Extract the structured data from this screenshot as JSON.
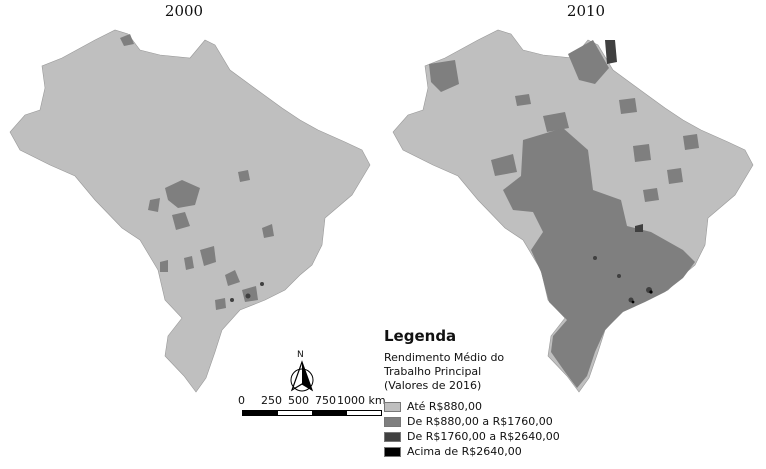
{
  "maps": {
    "left": {
      "year": "2000"
    },
    "right": {
      "year": "2010"
    }
  },
  "legend": {
    "title": "Legenda",
    "subtitle_lines": [
      "Rendimento Médio do",
      "Trabalho Principal",
      "(Valores de 2016)"
    ],
    "items": [
      {
        "label": "Até R$880,00",
        "color": "#bfbfbf"
      },
      {
        "label": "De R$880,00 a R$1760,00",
        "color": "#7f7f7f"
      },
      {
        "label": "De R$1760,00 a R$2640,00",
        "color": "#404040"
      },
      {
        "label": "Acima de R$2640,00",
        "color": "#000000"
      }
    ]
  },
  "north_arrow": {
    "label": "N"
  },
  "scale_bar": {
    "ticks": [
      "0",
      "250",
      "500",
      "750",
      "1000 km"
    ]
  }
}
